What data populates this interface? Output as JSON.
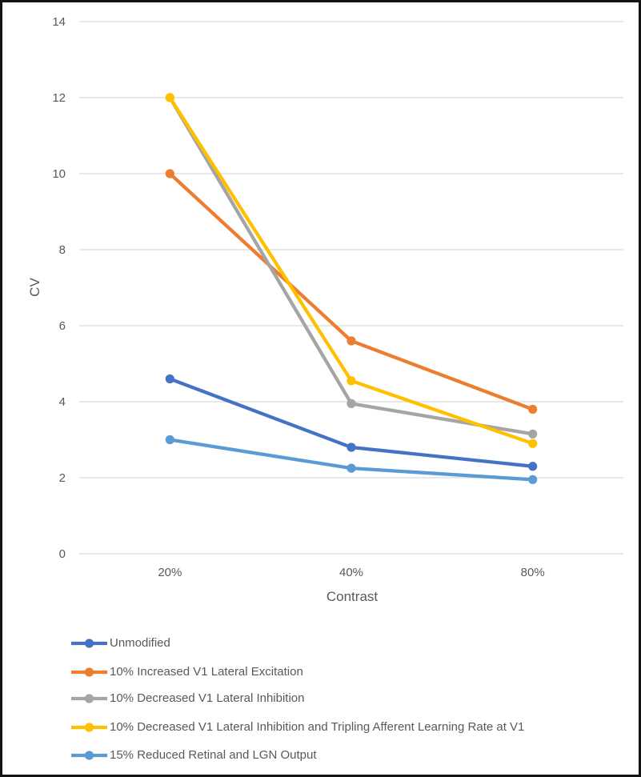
{
  "chart_data": {
    "type": "line",
    "title": "",
    "xlabel": "Contrast",
    "ylabel": "CV",
    "categories": [
      "20%",
      "40%",
      "80%"
    ],
    "series": [
      {
        "name": "Unmodified",
        "color": "#4472C4",
        "values": [
          4.6,
          2.8,
          2.3
        ]
      },
      {
        "name": "10% Increased V1 Lateral Excitation",
        "color": "#ED7D31",
        "values": [
          10.0,
          5.6,
          3.8
        ]
      },
      {
        "name": "10% Decreased V1 Lateral Inhibition",
        "color": "#A5A5A5",
        "values": [
          12.0,
          3.95,
          3.15
        ]
      },
      {
        "name": "10% Decreased V1 Lateral Inhibition and Tripling Afferent Learning Rate at V1",
        "color": "#FFC000",
        "values": [
          12.0,
          4.55,
          2.9
        ]
      },
      {
        "name": "15% Reduced Retinal and LGN Output",
        "color": "#5B9BD5",
        "values": [
          3.0,
          2.25,
          1.95
        ]
      }
    ],
    "ylim": [
      0,
      14
    ],
    "ytick_step": 2,
    "ytick_labels": [
      "0",
      "2",
      "4",
      "6",
      "8",
      "10",
      "12",
      "14"
    ],
    "grid": true,
    "gridline_color": "#D9D9D9",
    "axis_text_color": "#595959",
    "legend_position": "bottom-left"
  }
}
